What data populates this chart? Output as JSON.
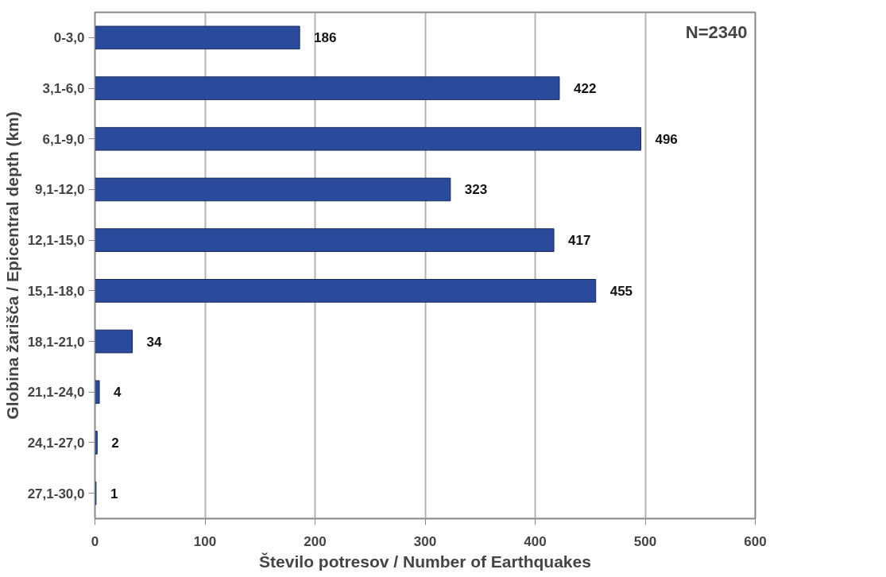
{
  "chart_data": {
    "type": "bar",
    "orientation": "horizontal",
    "xlabel": "Število potresov / Number of Earthquakes",
    "ylabel": "Globina žarišča / Epicentral depth (km)",
    "categories": [
      "0-3,0",
      "3,1-6,0",
      "6,1-9,0",
      "9,1-12,0",
      "12,1-15,0",
      "15,1-18,0",
      "18,1-21,0",
      "21,1-24,0",
      "24,1-27,0",
      "27,1-30,0"
    ],
    "values": [
      186,
      422,
      496,
      323,
      417,
      455,
      34,
      4,
      2,
      1
    ],
    "color": "#2a4b9b",
    "xlim": [
      0,
      600
    ],
    "xticks": [
      0,
      100,
      200,
      300,
      400,
      500,
      600
    ],
    "grid": "x",
    "data_labels": true,
    "annotations": [
      "N=2340"
    ]
  }
}
